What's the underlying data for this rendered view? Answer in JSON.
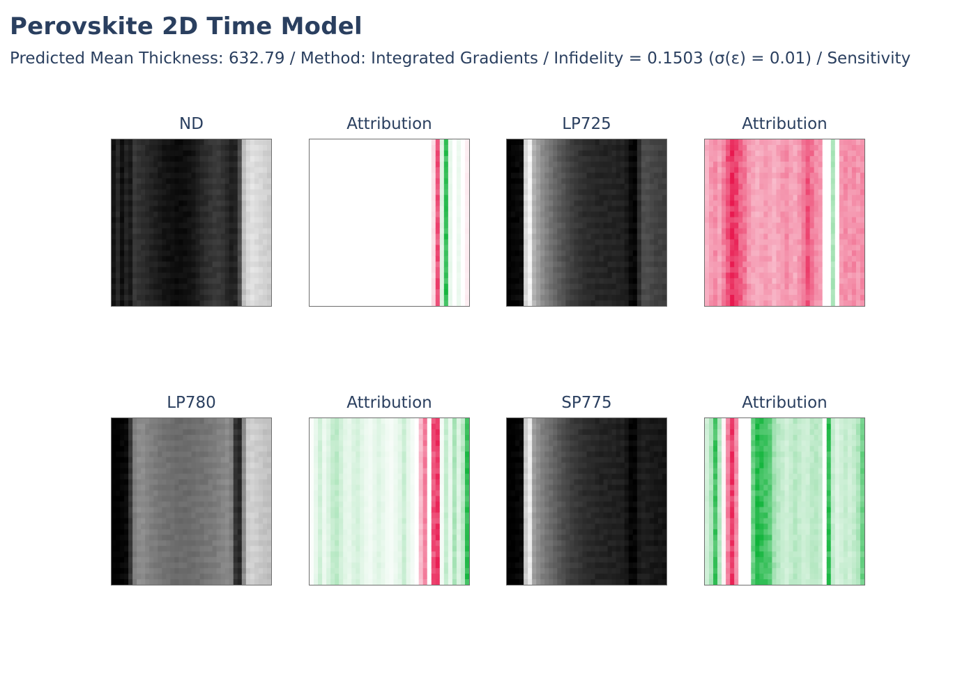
{
  "title": "Perovskite 2D Time Model",
  "subtitle": "Predicted Mean Thickness: 632.79 / Method: Integrated Gradients / Infidelity = 0.1503 (σ(ε) = 0.01) / Sensitivity",
  "colors": {
    "text": "#2a3f5f",
    "positive_attribution": "#10b33a",
    "negative_attribution": "#e8194f",
    "frame": "#6e6e6e"
  },
  "chart_data": [
    {
      "type": "heatmap",
      "title": "ND",
      "colormap": "grayscale",
      "column_profile": [
        0.08,
        0.16,
        0.06,
        0.14,
        0.1,
        0.22,
        0.2,
        0.18,
        0.16,
        0.14,
        0.12,
        0.1,
        0.08,
        0.07,
        0.06,
        0.05,
        0.05,
        0.06,
        0.07,
        0.09,
        0.12,
        0.16,
        0.18,
        0.2,
        0.22,
        0.22,
        0.2,
        0.16,
        0.12,
        0.14,
        0.3,
        0.75,
        0.85,
        0.88,
        0.86,
        0.84,
        0.82,
        0.8
      ]
    },
    {
      "type": "heatmap",
      "title": "Attribution",
      "colormap": "diverging-red-green",
      "column_profile": [
        0,
        0,
        0,
        0,
        0,
        0,
        0,
        0,
        0,
        0,
        0,
        0,
        0,
        0,
        0,
        0,
        0,
        0,
        0,
        0,
        0,
        0,
        0,
        0,
        0,
        0,
        0,
        0,
        0,
        -0.15,
        -0.75,
        0.15,
        0.85,
        0.1,
        0,
        0.08,
        0,
        -0.08
      ]
    },
    {
      "type": "heatmap",
      "title": "LP725",
      "colormap": "grayscale",
      "column_profile": [
        0.0,
        0.02,
        0.03,
        0.05,
        0.85,
        0.95,
        0.7,
        0.62,
        0.55,
        0.5,
        0.45,
        0.4,
        0.36,
        0.32,
        0.28,
        0.25,
        0.22,
        0.2,
        0.18,
        0.17,
        0.16,
        0.15,
        0.15,
        0.14,
        0.14,
        0.14,
        0.13,
        0.13,
        0.1,
        0.04,
        0.02,
        0.18,
        0.3,
        0.3,
        0.28,
        0.26,
        0.25,
        0.24
      ]
    },
    {
      "type": "heatmap",
      "title": "Attribution",
      "colormap": "diverging-red-green",
      "column_profile": [
        -0.35,
        -0.45,
        -0.5,
        -0.4,
        -0.55,
        -0.75,
        -0.9,
        -0.85,
        -0.7,
        -0.6,
        -0.45,
        -0.4,
        -0.35,
        -0.4,
        -0.45,
        -0.4,
        -0.35,
        -0.4,
        -0.45,
        -0.5,
        -0.42,
        -0.38,
        -0.45,
        -0.55,
        -0.75,
        -0.6,
        -0.5,
        -0.45,
        0.0,
        0.0,
        0.35,
        0.0,
        -0.45,
        -0.5,
        -0.45,
        -0.5,
        -0.45,
        -0.5
      ]
    },
    {
      "type": "heatmap",
      "title": "LP780",
      "colormap": "grayscale",
      "column_profile": [
        0.0,
        0.0,
        0.02,
        0.04,
        0.22,
        0.5,
        0.55,
        0.55,
        0.52,
        0.5,
        0.48,
        0.46,
        0.45,
        0.44,
        0.43,
        0.42,
        0.42,
        0.42,
        0.42,
        0.43,
        0.44,
        0.45,
        0.46,
        0.47,
        0.48,
        0.5,
        0.52,
        0.54,
        0.5,
        0.2,
        0.15,
        0.55,
        0.8,
        0.82,
        0.8,
        0.78,
        0.76,
        0.75
      ]
    },
    {
      "type": "heatmap",
      "title": "Attribution",
      "colormap": "diverging-red-green",
      "column_profile": [
        0.02,
        0.1,
        0.2,
        0.08,
        0.15,
        0.25,
        0.28,
        0.2,
        0.12,
        0.1,
        0.15,
        0.18,
        0.12,
        0.08,
        0.06,
        0.1,
        0.14,
        0.1,
        0.06,
        0.04,
        0.08,
        0.12,
        0.22,
        0.1,
        0.05,
        0.0,
        -0.3,
        -0.55,
        0.0,
        -0.75,
        -0.85,
        0.05,
        0.25,
        0.1,
        0.35,
        0.15,
        0.3,
        0.85
      ]
    },
    {
      "type": "heatmap",
      "title": "SP775",
      "colormap": "grayscale",
      "column_profile": [
        0.0,
        0.0,
        0.02,
        0.04,
        0.8,
        0.92,
        0.62,
        0.55,
        0.5,
        0.46,
        0.42,
        0.38,
        0.34,
        0.3,
        0.27,
        0.24,
        0.22,
        0.2,
        0.18,
        0.17,
        0.16,
        0.15,
        0.14,
        0.14,
        0.13,
        0.13,
        0.12,
        0.12,
        0.08,
        0.02,
        0.02,
        0.1,
        0.12,
        0.11,
        0.1,
        0.09,
        0.09,
        0.08
      ]
    },
    {
      "type": "heatmap",
      "title": "Attribution",
      "colormap": "diverging-red-green",
      "column_profile": [
        0.2,
        0.35,
        0.8,
        0.3,
        -0.05,
        -0.55,
        -0.85,
        -0.5,
        0.0,
        0.0,
        0.0,
        0.65,
        0.9,
        0.85,
        0.8,
        0.7,
        0.4,
        0.3,
        0.25,
        0.2,
        0.25,
        0.3,
        0.25,
        0.2,
        0.22,
        0.28,
        0.3,
        0.25,
        0.0,
        0.85,
        0.25,
        0.15,
        0.2,
        0.25,
        0.2,
        0.25,
        0.35,
        0.6
      ]
    }
  ]
}
